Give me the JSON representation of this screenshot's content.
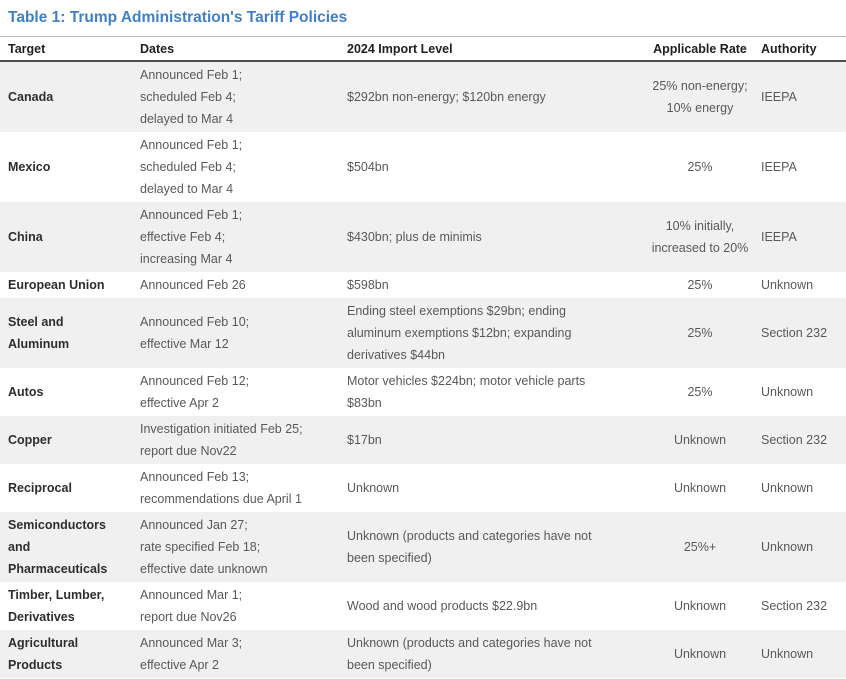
{
  "title": "Table 1: Trump Administration's Tariff Policies",
  "table": {
    "columns": [
      "Target",
      "Dates",
      "2024 Import Level",
      "Applicable Rate",
      "Authority"
    ],
    "rows": [
      {
        "target": "Canada",
        "dates": [
          "Announced Feb 1;",
          "scheduled Feb 4;",
          "delayed to Mar 4"
        ],
        "import_level": "$292bn non-energy; $120bn energy",
        "rate": [
          "25% non-energy;",
          "10% energy"
        ],
        "authority": "IEEPA"
      },
      {
        "target": "Mexico",
        "dates": [
          "Announced Feb 1;",
          "scheduled Feb 4;",
          "delayed to Mar 4"
        ],
        "import_level": "$504bn",
        "rate": "25%",
        "authority": "IEEPA"
      },
      {
        "target": "China",
        "dates": [
          "Announced Feb 1;",
          "effective Feb 4;",
          "increasing Mar 4"
        ],
        "import_level": "$430bn; plus de minimis",
        "rate": [
          "10% initially,",
          "increased to 20%"
        ],
        "authority": "IEEPA"
      },
      {
        "target": "European Union",
        "dates": "Announced Feb 26",
        "import_level": "$598bn",
        "rate": "25%",
        "authority": "Unknown"
      },
      {
        "target": [
          "Steel and",
          "Aluminum"
        ],
        "dates": [
          "Announced Feb 10;",
          "effective Mar 12"
        ],
        "import_level": [
          "Ending steel exemptions $29bn; ending",
          "aluminum exemptions $12bn; expanding",
          "derivatives $44bn"
        ],
        "rate": "25%",
        "authority": "Section 232"
      },
      {
        "target": "Autos",
        "dates": [
          "Announced Feb 12;",
          "effective Apr 2"
        ],
        "import_level": [
          "Motor vehicles $224bn; motor vehicle parts",
          "$83bn"
        ],
        "rate": "25%",
        "authority": "Unknown"
      },
      {
        "target": "Copper",
        "dates": [
          "Investigation initiated Feb 25;",
          "report due Nov22"
        ],
        "import_level": "$17bn",
        "rate": "Unknown",
        "authority": "Section 232"
      },
      {
        "target": "Reciprocal",
        "dates": [
          "Announced Feb 13;",
          "recommendations due April 1"
        ],
        "import_level": "Unknown",
        "rate": "Unknown",
        "authority": "Unknown"
      },
      {
        "target": [
          "Semiconductors",
          "and",
          "Pharmaceuticals"
        ],
        "dates": [
          "Announced Jan 27;",
          "rate specified Feb 18;",
          "effective date unknown"
        ],
        "import_level": [
          "Unknown (products and categories have not",
          "been specified)"
        ],
        "rate": "25%+",
        "authority": "Unknown"
      },
      {
        "target": [
          "Timber, Lumber,",
          "Derivatives"
        ],
        "dates": [
          "Announced Mar 1;",
          "report due Nov26"
        ],
        "import_level": "Wood and wood products $22.9bn",
        "rate": "Unknown",
        "authority": "Section 232"
      },
      {
        "target": [
          "Agricultural",
          "Products"
        ],
        "dates": [
          "Announced Mar 3;",
          "effective Apr 2"
        ],
        "import_level": [
          "Unknown (products and categories have not",
          "been specified)"
        ],
        "rate": "Unknown",
        "authority": "Unknown"
      }
    ]
  },
  "colors": {
    "title_blue": "#4080c4",
    "row_stripe_gray": "#f0f0f0",
    "header_rule_dark": "#4f4f4f",
    "header_rule_light": "#bdbdbd",
    "body_text": "#595959",
    "target_text": "#2e2e2e"
  }
}
